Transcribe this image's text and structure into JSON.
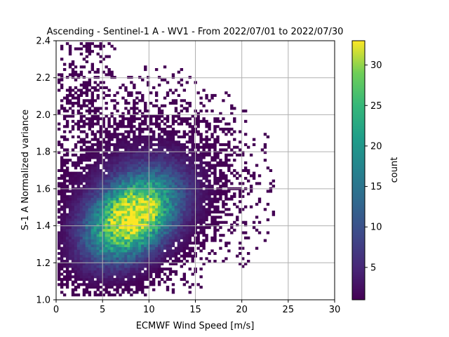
{
  "chart_data": {
    "type": "heatmap",
    "title": "Ascending - Sentinel-1 A - WV1 - From 2022/07/01 to 2022/07/30",
    "xlabel": "ECMWF Wind Speed [m/s]",
    "ylabel": "S-1 A Normalized variance",
    "xlim": [
      0,
      30
    ],
    "ylim": [
      1.0,
      2.4
    ],
    "xticks": [
      "0",
      "5",
      "10",
      "15",
      "20",
      "25",
      "30"
    ],
    "yticks": [
      "1.0",
      "1.2",
      "1.4",
      "1.6",
      "1.8",
      "2.0",
      "2.2",
      "2.4"
    ],
    "grid": true,
    "colormap": "viridis",
    "colorbar": {
      "label": "count",
      "range": [
        1,
        33
      ],
      "ticks": [
        "5",
        "10",
        "15",
        "20",
        "25",
        "30"
      ]
    },
    "distribution": {
      "peak_x": 8.0,
      "peak_y": 1.44,
      "peak_count": 33,
      "x_extent": [
        0.2,
        23
      ],
      "y_extent": [
        1.02,
        2.38
      ]
    }
  }
}
